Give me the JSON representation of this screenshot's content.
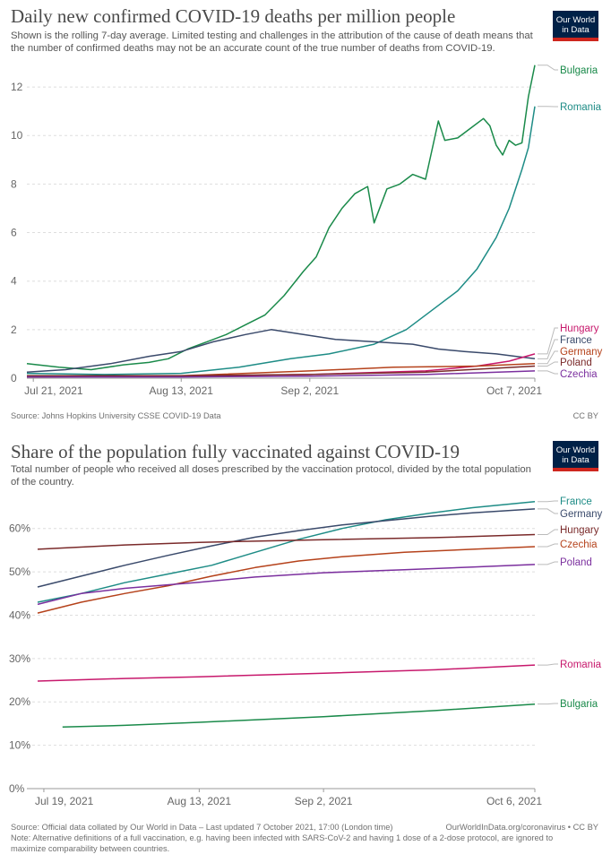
{
  "brand": {
    "logo_line1": "Our World",
    "logo_line2": "in Data",
    "bg": "#002147",
    "accent": "#ce261e"
  },
  "colors": {
    "Bulgaria": "#1a8a4a",
    "Romania": "#1e8c86",
    "Hungary": "#c7186c",
    "France": "#3a4a6b",
    "Germany": "#b5421b",
    "Poland": "#7a2a2a",
    "Czechia": "#7b2f9e"
  },
  "chart_data": [
    {
      "type": "line",
      "title": "Daily new confirmed COVID-19 deaths per million people",
      "subtitle": "Shown is the rolling 7-day average. Limited testing and challenges in the attribution of the cause of death means that the number of confirmed deaths may not be an accurate count of the true number of deaths from COVID-19.",
      "source": "Source: Johns Hopkins University CSSE COVID-19 Data",
      "license": "CC BY",
      "x_ticks": [
        "Jul 21, 2021",
        "Aug 13, 2021",
        "Sep 2, 2021",
        "Oct 7, 2021"
      ],
      "x_range": [
        "2021-07-20",
        "2021-10-07"
      ],
      "y_ticks": [
        "0",
        "2",
        "4",
        "6",
        "8",
        "10",
        "12"
      ],
      "ylim": [
        0,
        13
      ],
      "grid": true,
      "legend_placement": "right",
      "series": [
        {
          "name": "Bulgaria",
          "color": "#1a8a4a",
          "points": [
            [
              "2021-07-20",
              0.6
            ],
            [
              "2021-07-25",
              0.45
            ],
            [
              "2021-07-30",
              0.35
            ],
            [
              "2021-08-04",
              0.55
            ],
            [
              "2021-08-08",
              0.65
            ],
            [
              "2021-08-11",
              0.8
            ],
            [
              "2021-08-14",
              1.2
            ],
            [
              "2021-08-17",
              1.5
            ],
            [
              "2021-08-20",
              1.8
            ],
            [
              "2021-08-23",
              2.2
            ],
            [
              "2021-08-26",
              2.6
            ],
            [
              "2021-08-29",
              3.4
            ],
            [
              "2021-09-01",
              4.4
            ],
            [
              "2021-09-03",
              5.0
            ],
            [
              "2021-09-05",
              6.2
            ],
            [
              "2021-09-07",
              7.0
            ],
            [
              "2021-09-09",
              7.6
            ],
            [
              "2021-09-11",
              7.9
            ],
            [
              "2021-09-12",
              6.4
            ],
            [
              "2021-09-14",
              7.8
            ],
            [
              "2021-09-16",
              8.0
            ],
            [
              "2021-09-18",
              8.4
            ],
            [
              "2021-09-20",
              8.2
            ],
            [
              "2021-09-22",
              10.6
            ],
            [
              "2021-09-23",
              9.8
            ],
            [
              "2021-09-25",
              9.9
            ],
            [
              "2021-09-27",
              10.3
            ],
            [
              "2021-09-29",
              10.7
            ],
            [
              "2021-09-30",
              10.4
            ],
            [
              "2021-10-01",
              9.6
            ],
            [
              "2021-10-02",
              9.2
            ],
            [
              "2021-10-03",
              9.8
            ],
            [
              "2021-10-04",
              9.6
            ],
            [
              "2021-10-05",
              9.7
            ],
            [
              "2021-10-06",
              11.6
            ],
            [
              "2021-10-07",
              12.9
            ]
          ]
        },
        {
          "name": "Romania",
          "color": "#1e8c86",
          "points": [
            [
              "2021-07-20",
              0.2
            ],
            [
              "2021-08-01",
              0.15
            ],
            [
              "2021-08-13",
              0.2
            ],
            [
              "2021-08-22",
              0.45
            ],
            [
              "2021-08-30",
              0.8
            ],
            [
              "2021-09-05",
              1.0
            ],
            [
              "2021-09-12",
              1.4
            ],
            [
              "2021-09-17",
              2.0
            ],
            [
              "2021-09-21",
              2.8
            ],
            [
              "2021-09-25",
              3.6
            ],
            [
              "2021-09-28",
              4.5
            ],
            [
              "2021-10-01",
              5.8
            ],
            [
              "2021-10-03",
              7.0
            ],
            [
              "2021-10-05",
              8.6
            ],
            [
              "2021-10-06",
              9.5
            ],
            [
              "2021-10-07",
              11.2
            ]
          ]
        },
        {
          "name": "France",
          "color": "#3a4a6b",
          "points": [
            [
              "2021-07-20",
              0.25
            ],
            [
              "2021-07-26",
              0.35
            ],
            [
              "2021-08-02",
              0.6
            ],
            [
              "2021-08-08",
              0.9
            ],
            [
              "2021-08-13",
              1.1
            ],
            [
              "2021-08-18",
              1.5
            ],
            [
              "2021-08-23",
              1.8
            ],
            [
              "2021-08-27",
              2.0
            ],
            [
              "2021-09-01",
              1.8
            ],
            [
              "2021-09-06",
              1.6
            ],
            [
              "2021-09-12",
              1.5
            ],
            [
              "2021-09-18",
              1.4
            ],
            [
              "2021-09-22",
              1.2
            ],
            [
              "2021-09-26",
              1.1
            ],
            [
              "2021-10-01",
              1.0
            ],
            [
              "2021-10-04",
              0.9
            ],
            [
              "2021-10-07",
              0.8
            ]
          ]
        },
        {
          "name": "Hungary",
          "color": "#c7186c",
          "points": [
            [
              "2021-07-20",
              0.05
            ],
            [
              "2021-08-13",
              0.08
            ],
            [
              "2021-09-02",
              0.15
            ],
            [
              "2021-09-20",
              0.3
            ],
            [
              "2021-09-28",
              0.5
            ],
            [
              "2021-10-03",
              0.7
            ],
            [
              "2021-10-07",
              1.0
            ]
          ]
        },
        {
          "name": "Germany",
          "color": "#b5421b",
          "points": [
            [
              "2021-07-20",
              0.05
            ],
            [
              "2021-08-13",
              0.1
            ],
            [
              "2021-09-02",
              0.3
            ],
            [
              "2021-09-15",
              0.45
            ],
            [
              "2021-09-28",
              0.5
            ],
            [
              "2021-10-07",
              0.6
            ]
          ]
        },
        {
          "name": "Poland",
          "color": "#7a2a2a",
          "points": [
            [
              "2021-07-20",
              0.1
            ],
            [
              "2021-08-13",
              0.1
            ],
            [
              "2021-09-02",
              0.15
            ],
            [
              "2021-09-20",
              0.25
            ],
            [
              "2021-10-07",
              0.5
            ]
          ]
        },
        {
          "name": "Czechia",
          "color": "#7b2f9e",
          "points": [
            [
              "2021-07-20",
              0.05
            ],
            [
              "2021-08-13",
              0.05
            ],
            [
              "2021-09-02",
              0.08
            ],
            [
              "2021-09-20",
              0.15
            ],
            [
              "2021-10-07",
              0.3
            ]
          ]
        }
      ]
    },
    {
      "type": "line",
      "title": "Share of the population fully vaccinated against COVID-19",
      "subtitle": "Total number of people who received all doses prescribed by the vaccination protocol, divided by the total population of the country.",
      "source": "Source: Official data collated by Our World in Data – Last updated 7 October 2021, 17:00 (London time)",
      "source_right": "OurWorldInData.org/coronavirus • CC BY",
      "note": "Note: Alternative definitions of a full vaccination, e.g. having been infected with SARS-CoV-2 and having 1 dose of a 2-dose protocol, are ignored to maximize comparability between countries.",
      "x_ticks": [
        "Jul 19, 2021",
        "Aug 13, 2021",
        "Sep 2, 2021",
        "Oct 6, 2021"
      ],
      "x_range": [
        "2021-07-18",
        "2021-10-06"
      ],
      "y_ticks": [
        "0%",
        "10%",
        "20%",
        "30%",
        "40%",
        "50%",
        "60%"
      ],
      "ylim": [
        0,
        68
      ],
      "grid": true,
      "legend_placement": "right",
      "series": [
        {
          "name": "France",
          "color": "#1e8c86",
          "points": [
            [
              "2021-07-18",
              43
            ],
            [
              "2021-07-25",
              45
            ],
            [
              "2021-08-01",
              47.5
            ],
            [
              "2021-08-08",
              49.5
            ],
            [
              "2021-08-15",
              51.5
            ],
            [
              "2021-08-22",
              54.5
            ],
            [
              "2021-08-29",
              57.5
            ],
            [
              "2021-09-05",
              60
            ],
            [
              "2021-09-12",
              62
            ],
            [
              "2021-09-19",
              63.5
            ],
            [
              "2021-09-26",
              64.8
            ],
            [
              "2021-10-06",
              66.2
            ]
          ]
        },
        {
          "name": "Germany",
          "color": "#3a4a6b",
          "points": [
            [
              "2021-07-18",
              46.5
            ],
            [
              "2021-07-25",
              49
            ],
            [
              "2021-08-01",
              51.5
            ],
            [
              "2021-08-08",
              53.8
            ],
            [
              "2021-08-15",
              56
            ],
            [
              "2021-08-22",
              58
            ],
            [
              "2021-08-29",
              59.5
            ],
            [
              "2021-09-05",
              60.8
            ],
            [
              "2021-09-12",
              61.8
            ],
            [
              "2021-09-19",
              62.8
            ],
            [
              "2021-09-26",
              63.6
            ],
            [
              "2021-10-06",
              64.5
            ]
          ]
        },
        {
          "name": "Hungary",
          "color": "#7a2a2a",
          "points": [
            [
              "2021-07-18",
              55.2
            ],
            [
              "2021-08-01",
              56.2
            ],
            [
              "2021-08-13",
              56.8
            ],
            [
              "2021-09-02",
              57.4
            ],
            [
              "2021-09-20",
              57.9
            ],
            [
              "2021-10-06",
              58.6
            ]
          ]
        },
        {
          "name": "Czechia",
          "color": "#b5421b",
          "points": [
            [
              "2021-07-18",
              40.5
            ],
            [
              "2021-07-25",
              43
            ],
            [
              "2021-08-01",
              45
            ],
            [
              "2021-08-08",
              46.8
            ],
            [
              "2021-08-15",
              49
            ],
            [
              "2021-08-22",
              51
            ],
            [
              "2021-08-29",
              52.5
            ],
            [
              "2021-09-05",
              53.5
            ],
            [
              "2021-09-15",
              54.5
            ],
            [
              "2021-09-26",
              55.2
            ],
            [
              "2021-10-06",
              55.8
            ]
          ]
        },
        {
          "name": "Poland",
          "color": "#7b2f9e",
          "points": [
            [
              "2021-07-18",
              42.5
            ],
            [
              "2021-07-25",
              45
            ],
            [
              "2021-08-01",
              46.2
            ],
            [
              "2021-08-13",
              47.6
            ],
            [
              "2021-08-22",
              48.8
            ],
            [
              "2021-09-02",
              49.8
            ],
            [
              "2021-09-15",
              50.5
            ],
            [
              "2021-09-26",
              51.1
            ],
            [
              "2021-10-06",
              51.7
            ]
          ]
        },
        {
          "name": "Romania",
          "color": "#c7186c",
          "points": [
            [
              "2021-07-18",
              24.8
            ],
            [
              "2021-08-01",
              25.4
            ],
            [
              "2021-08-13",
              25.8
            ],
            [
              "2021-09-02",
              26.6
            ],
            [
              "2021-09-20",
              27.4
            ],
            [
              "2021-10-06",
              28.5
            ]
          ]
        },
        {
          "name": "Bulgaria",
          "color": "#1a8a4a",
          "points": [
            [
              "2021-07-22",
              14.2
            ],
            [
              "2021-08-01",
              14.6
            ],
            [
              "2021-08-13",
              15.3
            ],
            [
              "2021-09-02",
              16.6
            ],
            [
              "2021-09-20",
              18.0
            ],
            [
              "2021-10-06",
              19.5
            ]
          ]
        }
      ]
    }
  ]
}
